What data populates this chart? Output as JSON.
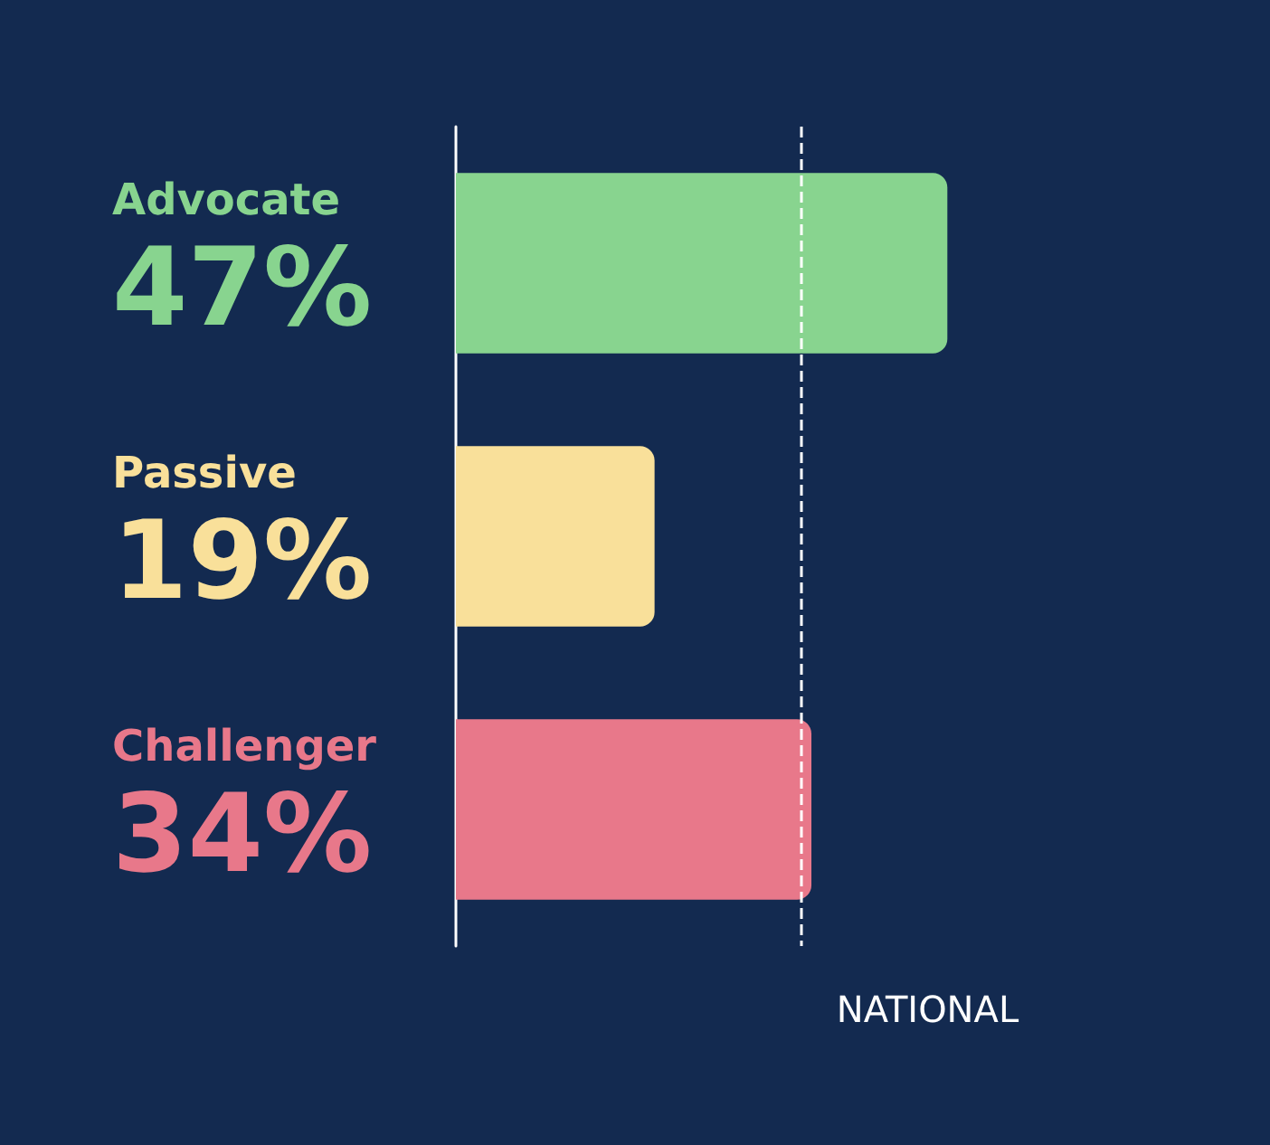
{
  "chart_data": {
    "type": "bar",
    "orientation": "horizontal",
    "categories": [
      "Advocate",
      "Passive",
      "Challenger"
    ],
    "values": [
      47,
      19,
      34
    ],
    "colors": [
      "#88d48f",
      "#f9e09a",
      "#e8788a"
    ],
    "value_labels": [
      "47%",
      "19%",
      "34%"
    ],
    "ref_lines": [
      {
        "axis": "x",
        "value": 33,
        "label": "NATIONAL",
        "color": "#ffffff",
        "line_style": "dashed"
      }
    ]
  }
}
